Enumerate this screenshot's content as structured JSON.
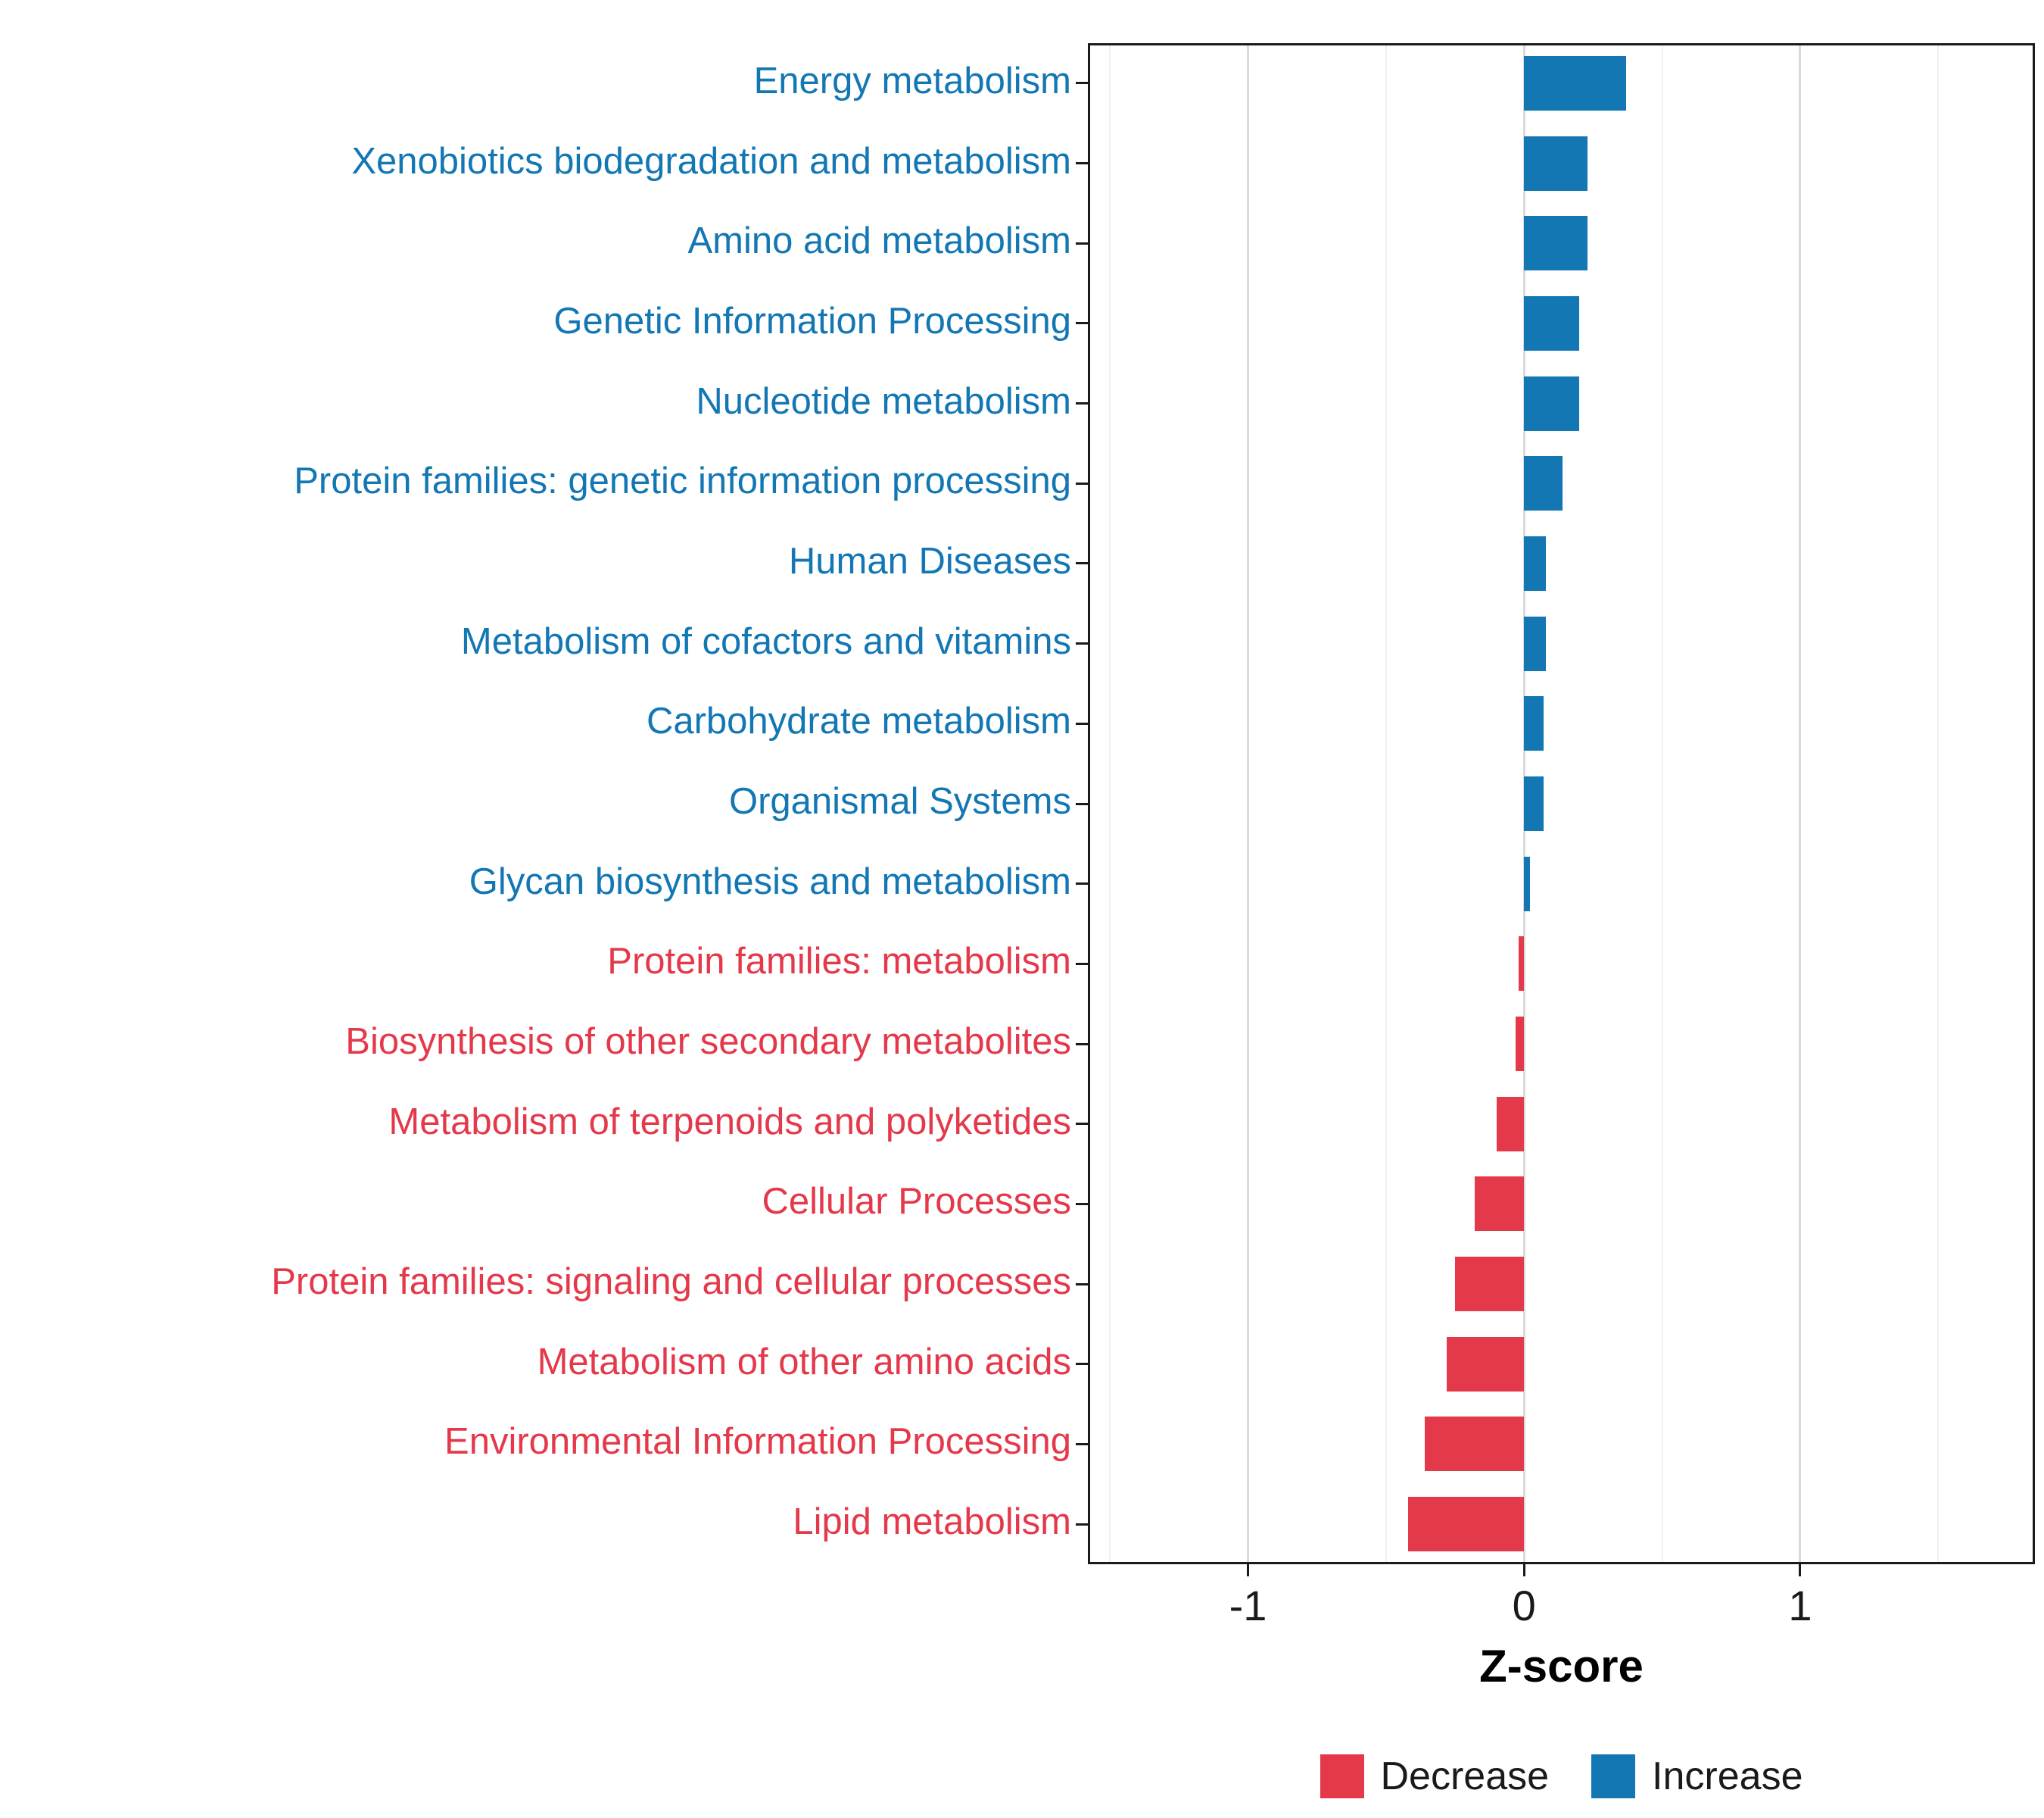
{
  "colors": {
    "increase": "#1377B4",
    "decrease": "#E4394A",
    "grid_major": "#D9D9D9",
    "grid_minor": "#F0F0F0",
    "panel_border": "#1A1A1A",
    "tick": "#1A1A1A",
    "axis_text": "#1A1A1A",
    "background": "#FFFFFF"
  },
  "chart_data": {
    "type": "bar",
    "orientation": "horizontal",
    "title": "",
    "xlabel": "Z-score",
    "ylabel": "",
    "xlim": [
      -1.58,
      1.85
    ],
    "x_ticks": [
      -1,
      0,
      1
    ],
    "x_tick_labels": [
      "-1",
      "0",
      "1"
    ],
    "x_minor_ticks": [
      -1.5,
      -0.5,
      0.5,
      1.5
    ],
    "grid": true,
    "legend_position": "bottom-right",
    "categories": [
      "Energy metabolism",
      "Xenobiotics biodegradation and metabolism",
      "Amino acid metabolism",
      "Genetic Information Processing",
      "Nucleotide metabolism",
      "Protein families: genetic information processing",
      "Human Diseases",
      "Metabolism of cofactors and vitamins",
      "Carbohydrate metabolism",
      "Organismal Systems",
      "Glycan biosynthesis and metabolism",
      "Protein families: metabolism",
      "Biosynthesis of other secondary metabolites",
      "Metabolism of terpenoids and polyketides",
      "Cellular Processes",
      "Protein families: signaling and cellular processes",
      "Metabolism of other amino acids",
      "Environmental Information Processing",
      "Lipid metabolism"
    ],
    "values": [
      0.37,
      0.23,
      0.23,
      0.2,
      0.2,
      0.14,
      0.08,
      0.08,
      0.07,
      0.07,
      0.02,
      -0.02,
      -0.03,
      -0.1,
      -0.18,
      -0.25,
      -0.28,
      -0.36,
      -0.42
    ],
    "groups": [
      "increase",
      "increase",
      "increase",
      "increase",
      "increase",
      "increase",
      "increase",
      "increase",
      "increase",
      "increase",
      "increase",
      "decrease",
      "decrease",
      "decrease",
      "decrease",
      "decrease",
      "decrease",
      "decrease",
      "decrease"
    ],
    "legend": [
      {
        "label": "Decrease",
        "group": "decrease"
      },
      {
        "label": "Increase",
        "group": "increase"
      }
    ]
  }
}
